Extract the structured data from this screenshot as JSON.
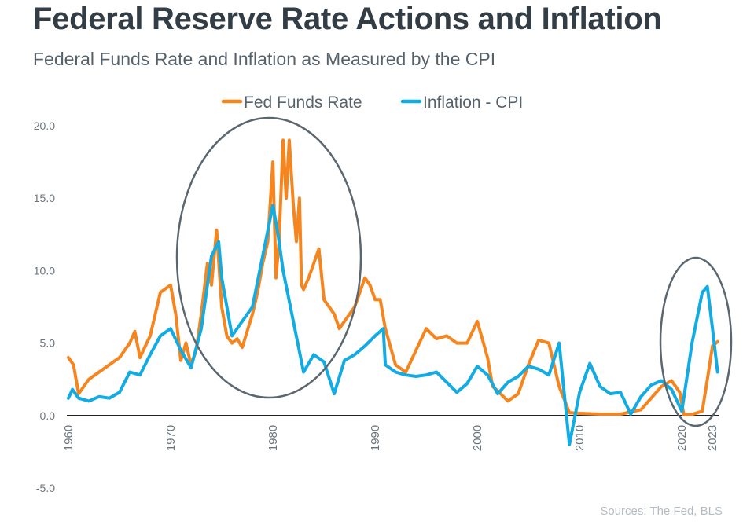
{
  "title": "Federal Reserve Rate Actions and Inflation",
  "subtitle": "Federal Funds Rate and Inflation as Measured by the CPI",
  "source": "Sources: The Fed, BLS",
  "colors": {
    "fed": "#f5851f",
    "cpi": "#12abe2",
    "circle": "#5b6770",
    "axis": "#222222",
    "tick": "#6a757e"
  },
  "chart_data": {
    "type": "line",
    "title": "Federal Reserve Rate Actions and Inflation",
    "subtitle": "Federal Funds Rate and Inflation as Measured by the CPI",
    "xlabel": "",
    "ylabel": "",
    "xlim": [
      1960,
      2023.6
    ],
    "ylim": [
      -5,
      20
    ],
    "yticks": [
      "20.0",
      "15.0",
      "10.0",
      "5.0",
      "0.0",
      "-5.0"
    ],
    "ytick_values": [
      20,
      15,
      10,
      5,
      0,
      -5
    ],
    "xticks": [
      "1960",
      "1970",
      "1980",
      "1990",
      "2000",
      "2010",
      "2020",
      "2023"
    ],
    "xtick_values": [
      1960,
      1970,
      1980,
      1990,
      2000,
      2010,
      2020,
      2023
    ],
    "grid": false,
    "legend": "top-center",
    "series": [
      {
        "name": "Fed Funds Rate",
        "color": "#f5851f",
        "points": [
          [
            1960,
            4.0
          ],
          [
            1960.5,
            3.5
          ],
          [
            1961,
            1.5
          ],
          [
            1961.5,
            2.0
          ],
          [
            1962,
            2.5
          ],
          [
            1963,
            3.0
          ],
          [
            1964,
            3.5
          ],
          [
            1965,
            4.0
          ],
          [
            1966,
            5.0
          ],
          [
            1966.5,
            5.8
          ],
          [
            1967,
            4.0
          ],
          [
            1968,
            5.5
          ],
          [
            1969,
            8.5
          ],
          [
            1970,
            9.0
          ],
          [
            1970.5,
            7.0
          ],
          [
            1971,
            3.8
          ],
          [
            1971.5,
            5.0
          ],
          [
            1972,
            3.5
          ],
          [
            1972.5,
            4.5
          ],
          [
            1973,
            7.0
          ],
          [
            1973.6,
            10.5
          ],
          [
            1974,
            9.0
          ],
          [
            1974.5,
            12.8
          ],
          [
            1975,
            7.5
          ],
          [
            1975.5,
            5.5
          ],
          [
            1976,
            5.0
          ],
          [
            1976.5,
            5.3
          ],
          [
            1977,
            4.7
          ],
          [
            1978,
            7.0
          ],
          [
            1978.5,
            8.5
          ],
          [
            1979,
            10.5
          ],
          [
            1979.5,
            12.0
          ],
          [
            1980,
            17.5
          ],
          [
            1980.3,
            9.5
          ],
          [
            1980.6,
            12.0
          ],
          [
            1981,
            19.0
          ],
          [
            1981.3,
            15.0
          ],
          [
            1981.6,
            19.0
          ],
          [
            1982,
            14.5
          ],
          [
            1982.3,
            12.0
          ],
          [
            1982.6,
            15.0
          ],
          [
            1982.8,
            9.0
          ],
          [
            1983,
            8.7
          ],
          [
            1983.5,
            9.5
          ],
          [
            1984,
            10.5
          ],
          [
            1984.5,
            11.5
          ],
          [
            1985,
            8.0
          ],
          [
            1986,
            7.0
          ],
          [
            1986.5,
            6.0
          ],
          [
            1987,
            6.5
          ],
          [
            1988,
            7.5
          ],
          [
            1988.5,
            8.5
          ],
          [
            1989,
            9.5
          ],
          [
            1989.5,
            9.0
          ],
          [
            1990,
            8.0
          ],
          [
            1990.5,
            8.0
          ],
          [
            1991,
            6.0
          ],
          [
            1992,
            3.5
          ],
          [
            1993,
            3.0
          ],
          [
            1994,
            4.5
          ],
          [
            1995,
            6.0
          ],
          [
            1996,
            5.3
          ],
          [
            1997,
            5.5
          ],
          [
            1998,
            5.0
          ],
          [
            1999,
            5.0
          ],
          [
            2000,
            6.5
          ],
          [
            2001,
            4.0
          ],
          [
            2001.5,
            2.0
          ],
          [
            2002,
            1.7
          ],
          [
            2003,
            1.0
          ],
          [
            2004,
            1.5
          ],
          [
            2005,
            3.5
          ],
          [
            2006,
            5.2
          ],
          [
            2007,
            5.0
          ],
          [
            2008,
            2.0
          ],
          [
            2009,
            0.2
          ],
          [
            2010,
            0.15
          ],
          [
            2012,
            0.1
          ],
          [
            2014,
            0.1
          ],
          [
            2016,
            0.4
          ],
          [
            2017,
            1.2
          ],
          [
            2018,
            2.0
          ],
          [
            2019,
            2.4
          ],
          [
            2019.8,
            1.6
          ],
          [
            2020.2,
            0.05
          ],
          [
            2021,
            0.08
          ],
          [
            2022,
            0.3
          ],
          [
            2022.5,
            2.5
          ],
          [
            2023,
            4.8
          ],
          [
            2023.5,
            5.1
          ]
        ]
      },
      {
        "name": "Inflation - CPI",
        "color": "#12abe2",
        "points": [
          [
            1960,
            1.2
          ],
          [
            1960.4,
            1.8
          ],
          [
            1961,
            1.2
          ],
          [
            1962,
            1.0
          ],
          [
            1963,
            1.3
          ],
          [
            1964,
            1.2
          ],
          [
            1965,
            1.6
          ],
          [
            1966,
            3.0
          ],
          [
            1967,
            2.8
          ],
          [
            1968,
            4.2
          ],
          [
            1969,
            5.5
          ],
          [
            1970,
            6.0
          ],
          [
            1971,
            4.5
          ],
          [
            1972,
            3.3
          ],
          [
            1973,
            6.0
          ],
          [
            1974,
            11.0
          ],
          [
            1974.7,
            12.0
          ],
          [
            1975,
            9.5
          ],
          [
            1976,
            5.5
          ],
          [
            1977,
            6.5
          ],
          [
            1978,
            7.5
          ],
          [
            1979,
            11.0
          ],
          [
            1980,
            14.5
          ],
          [
            1980.5,
            12.5
          ],
          [
            1981,
            10.0
          ],
          [
            1982,
            6.5
          ],
          [
            1983,
            3.0
          ],
          [
            1984,
            4.2
          ],
          [
            1985,
            3.7
          ],
          [
            1986,
            1.5
          ],
          [
            1987,
            3.8
          ],
          [
            1988,
            4.2
          ],
          [
            1989,
            4.8
          ],
          [
            1990,
            5.5
          ],
          [
            1990.8,
            6.0
          ],
          [
            1991,
            3.5
          ],
          [
            1992,
            3.0
          ],
          [
            1993,
            2.8
          ],
          [
            1994,
            2.7
          ],
          [
            1995,
            2.8
          ],
          [
            1996,
            3.0
          ],
          [
            1997,
            2.3
          ],
          [
            1998,
            1.6
          ],
          [
            1999,
            2.2
          ],
          [
            2000,
            3.4
          ],
          [
            2001,
            2.8
          ],
          [
            2002,
            1.5
          ],
          [
            2003,
            2.3
          ],
          [
            2004,
            2.7
          ],
          [
            2005,
            3.4
          ],
          [
            2006,
            3.2
          ],
          [
            2007,
            2.8
          ],
          [
            2008,
            5.0
          ],
          [
            2009,
            -2.0
          ],
          [
            2010,
            1.6
          ],
          [
            2011,
            3.6
          ],
          [
            2012,
            2.0
          ],
          [
            2013,
            1.5
          ],
          [
            2014,
            1.6
          ],
          [
            2015,
            0.1
          ],
          [
            2016,
            1.3
          ],
          [
            2017,
            2.1
          ],
          [
            2018,
            2.4
          ],
          [
            2019,
            1.8
          ],
          [
            2020,
            0.3
          ],
          [
            2021,
            5.0
          ],
          [
            2022,
            8.5
          ],
          [
            2022.5,
            8.9
          ],
          [
            2023,
            6.0
          ],
          [
            2023.5,
            3.0
          ]
        ]
      }
    ],
    "annotations": [
      "ellipse around 1973-1987 peak",
      "ellipse around 2020-2023 surge"
    ]
  }
}
